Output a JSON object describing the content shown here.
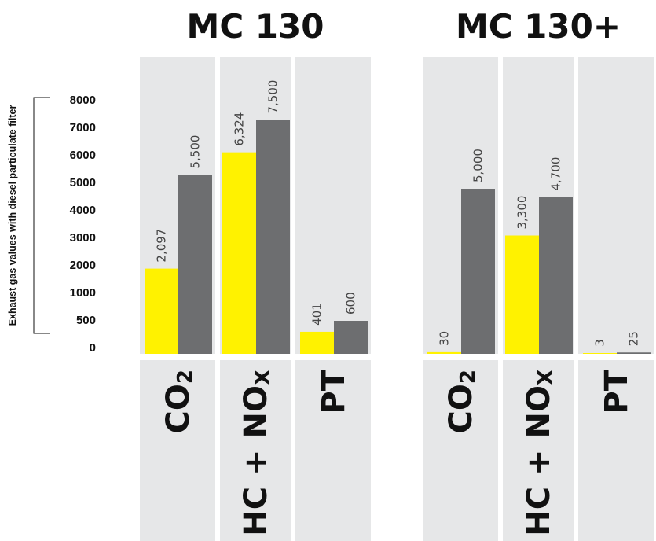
{
  "chart_data": {
    "type": "bar",
    "ylabel": "Exhaust gas values with diesel particulate filter",
    "yticks": [
      "8000",
      "7000",
      "6000",
      "5000",
      "4000",
      "3000",
      "2000",
      "1000",
      "500",
      "0"
    ],
    "series_colors": [
      "#fff200",
      "#6d6e70"
    ],
    "panel_color": "#e6e7e8",
    "panels": [
      {
        "title": "MC 130",
        "categories": [
          {
            "label": "CO",
            "sub": "2",
            "values": [
              2097,
              5500
            ],
            "labels": [
              "2,097",
              "5,500"
            ]
          },
          {
            "label": "HC + NO",
            "sub": "X",
            "values": [
              6324,
              7500
            ],
            "labels": [
              "6,324",
              "7,500"
            ]
          },
          {
            "label": "PT",
            "sub": "",
            "values": [
              401,
              600
            ],
            "labels": [
              "401",
              "600"
            ]
          }
        ]
      },
      {
        "title": "MC 130+",
        "categories": [
          {
            "label": "CO",
            "sub": "2",
            "values": [
              30,
              5000
            ],
            "labels": [
              "30",
              "5,000"
            ]
          },
          {
            "label": "HC + NO",
            "sub": "X",
            "values": [
              3300,
              4700
            ],
            "labels": [
              "3,300",
              "4,700"
            ]
          },
          {
            "label": "PT",
            "sub": "",
            "values": [
              3,
              25
            ],
            "labels": [
              "3",
              "25"
            ]
          }
        ]
      }
    ]
  }
}
